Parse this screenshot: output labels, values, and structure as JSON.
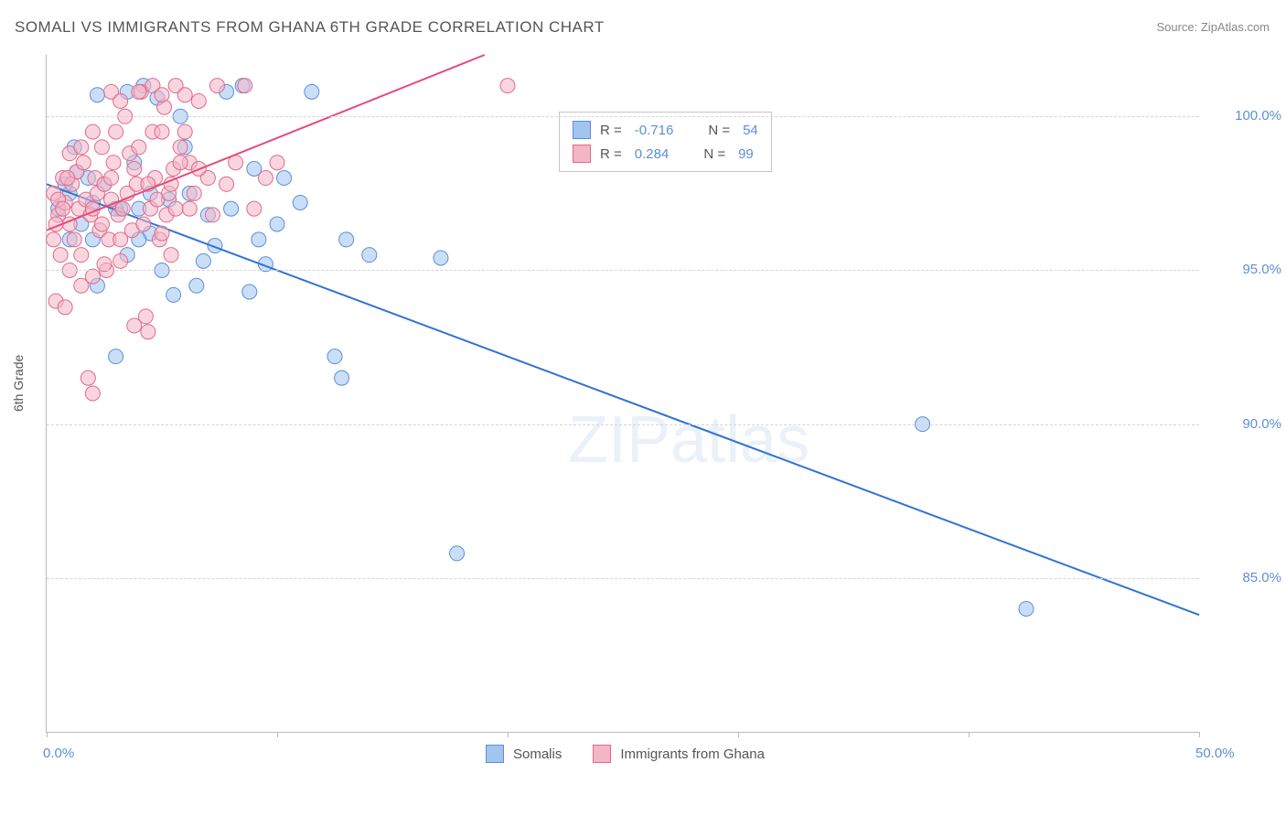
{
  "title": "SOMALI VS IMMIGRANTS FROM GHANA 6TH GRADE CORRELATION CHART",
  "source": "Source: ZipAtlas.com",
  "y_axis_label": "6th Grade",
  "watermark": "ZIPatlas",
  "chart": {
    "type": "scatter",
    "xlim": [
      0,
      50
    ],
    "ylim": [
      80,
      102
    ],
    "x_ticks": [
      0,
      10,
      20,
      30,
      40,
      50
    ],
    "x_tick_labels": {
      "0": "0.0%",
      "50": "50.0%"
    },
    "y_ticks": [
      85,
      90,
      95,
      100
    ],
    "y_tick_labels": [
      "85.0%",
      "90.0%",
      "95.0%",
      "100.0%"
    ],
    "background_color": "#ffffff",
    "grid_color": "#d5d5d5",
    "marker_radius": 8,
    "marker_opacity": 0.55,
    "series": [
      {
        "name": "Somalis",
        "color_fill": "#9fc5f0",
        "color_stroke": "#5b8fd6",
        "line_color": "#2f74d0",
        "line_width": 2,
        "R": "-0.716",
        "N": "54",
        "trend": {
          "x1": 0,
          "y1": 97.8,
          "x2": 50,
          "y2": 83.8
        },
        "points": [
          [
            0.5,
            97.0
          ],
          [
            1.0,
            97.5
          ],
          [
            1.2,
            99.0
          ],
          [
            1.5,
            96.5
          ],
          [
            1.8,
            98.0
          ],
          [
            2.0,
            97.2
          ],
          [
            2.2,
            94.5
          ],
          [
            2.5,
            97.8
          ],
          [
            3.0,
            92.2
          ],
          [
            3.2,
            97.0
          ],
          [
            3.5,
            95.5
          ],
          [
            3.8,
            98.5
          ],
          [
            4.0,
            97.0
          ],
          [
            4.2,
            101.0
          ],
          [
            4.5,
            96.2
          ],
          [
            5.0,
            95.0
          ],
          [
            5.3,
            97.3
          ],
          [
            5.5,
            94.2
          ],
          [
            6.0,
            99.0
          ],
          [
            6.2,
            97.5
          ],
          [
            6.5,
            94.5
          ],
          [
            7.0,
            96.8
          ],
          [
            7.3,
            95.8
          ],
          [
            8.0,
            97.0
          ],
          [
            8.5,
            101.0
          ],
          [
            9.0,
            98.3
          ],
          [
            9.5,
            95.2
          ],
          [
            10.0,
            96.5
          ],
          [
            10.3,
            98.0
          ],
          [
            11.0,
            97.2
          ],
          [
            12.5,
            92.2
          ],
          [
            12.8,
            91.5
          ],
          [
            13.0,
            96.0
          ],
          [
            14.0,
            95.5
          ],
          [
            17.1,
            95.4
          ],
          [
            38.0,
            90.0
          ],
          [
            42.5,
            84.0
          ],
          [
            17.8,
            85.8
          ],
          [
            3.0,
            97.0
          ],
          [
            4.8,
            100.6
          ],
          [
            2.0,
            96.0
          ],
          [
            1.0,
            96.0
          ],
          [
            0.8,
            97.8
          ],
          [
            1.3,
            98.2
          ],
          [
            5.8,
            100.0
          ],
          [
            6.8,
            95.3
          ],
          [
            4.0,
            96.0
          ],
          [
            4.5,
            97.5
          ],
          [
            7.8,
            100.8
          ],
          [
            3.5,
            100.8
          ],
          [
            11.5,
            100.8
          ],
          [
            2.2,
            100.7
          ],
          [
            9.2,
            96.0
          ],
          [
            8.8,
            94.3
          ]
        ]
      },
      {
        "name": "Immigrants from Ghana",
        "color_fill": "#f4b5c5",
        "color_stroke": "#e06a8c",
        "line_color": "#e54a7a",
        "line_width": 2,
        "R": "0.284",
        "N": "99",
        "trend": {
          "x1": 0,
          "y1": 96.3,
          "x2": 19,
          "y2": 102
        },
        "points": [
          [
            0.3,
            97.5
          ],
          [
            0.5,
            96.8
          ],
          [
            0.7,
            98.0
          ],
          [
            0.8,
            97.2
          ],
          [
            1.0,
            96.5
          ],
          [
            1.1,
            97.8
          ],
          [
            1.2,
            96.0
          ],
          [
            1.3,
            98.2
          ],
          [
            1.4,
            97.0
          ],
          [
            1.5,
            95.5
          ],
          [
            1.6,
            98.5
          ],
          [
            1.7,
            97.3
          ],
          [
            1.8,
            91.5
          ],
          [
            1.9,
            96.8
          ],
          [
            2.0,
            91.0
          ],
          [
            2.1,
            98.0
          ],
          [
            2.2,
            97.5
          ],
          [
            2.3,
            96.3
          ],
          [
            2.4,
            99.0
          ],
          [
            2.5,
            97.8
          ],
          [
            2.6,
            95.0
          ],
          [
            2.7,
            96.0
          ],
          [
            2.8,
            97.3
          ],
          [
            2.9,
            98.5
          ],
          [
            3.0,
            99.5
          ],
          [
            3.1,
            96.8
          ],
          [
            3.2,
            95.3
          ],
          [
            3.3,
            97.0
          ],
          [
            3.4,
            100.0
          ],
          [
            3.5,
            97.5
          ],
          [
            3.6,
            98.8
          ],
          [
            3.7,
            96.3
          ],
          [
            3.8,
            93.2
          ],
          [
            3.9,
            97.8
          ],
          [
            4.0,
            99.0
          ],
          [
            4.1,
            100.8
          ],
          [
            4.2,
            96.5
          ],
          [
            4.3,
            93.5
          ],
          [
            4.4,
            93.0
          ],
          [
            4.5,
            97.0
          ],
          [
            4.6,
            99.5
          ],
          [
            4.7,
            98.0
          ],
          [
            4.8,
            97.3
          ],
          [
            4.9,
            96.0
          ],
          [
            5.0,
            99.5
          ],
          [
            5.1,
            100.3
          ],
          [
            5.2,
            96.8
          ],
          [
            5.3,
            97.5
          ],
          [
            5.4,
            95.5
          ],
          [
            5.5,
            98.3
          ],
          [
            5.6,
            97.0
          ],
          [
            5.8,
            99.0
          ],
          [
            6.0,
            99.5
          ],
          [
            6.2,
            98.5
          ],
          [
            6.4,
            97.5
          ],
          [
            6.6,
            100.5
          ],
          [
            7.0,
            98.0
          ],
          [
            7.4,
            101.0
          ],
          [
            7.8,
            97.8
          ],
          [
            8.2,
            98.5
          ],
          [
            8.6,
            101.0
          ],
          [
            9.0,
            97.0
          ],
          [
            9.5,
            98.0
          ],
          [
            0.6,
            95.5
          ],
          [
            1.0,
            95.0
          ],
          [
            1.5,
            94.5
          ],
          [
            2.0,
            94.8
          ],
          [
            2.5,
            95.2
          ],
          [
            0.4,
            94.0
          ],
          [
            0.8,
            93.8
          ],
          [
            0.3,
            96.0
          ],
          [
            0.4,
            96.5
          ],
          [
            0.5,
            97.3
          ],
          [
            0.7,
            97.0
          ],
          [
            0.9,
            98.0
          ],
          [
            1.0,
            98.8
          ],
          [
            2.8,
            100.8
          ],
          [
            3.2,
            100.5
          ],
          [
            4.0,
            100.8
          ],
          [
            4.6,
            101.0
          ],
          [
            5.0,
            100.7
          ],
          [
            5.6,
            101.0
          ],
          [
            6.0,
            100.7
          ],
          [
            6.6,
            98.3
          ],
          [
            7.2,
            96.8
          ],
          [
            2.0,
            97.0
          ],
          [
            2.4,
            96.5
          ],
          [
            2.8,
            98.0
          ],
          [
            3.2,
            96.0
          ],
          [
            3.8,
            98.3
          ],
          [
            4.4,
            97.8
          ],
          [
            5.0,
            96.2
          ],
          [
            5.4,
            97.8
          ],
          [
            5.8,
            98.5
          ],
          [
            6.2,
            97.0
          ],
          [
            10.0,
            98.5
          ],
          [
            20.0,
            101.0
          ],
          [
            2.0,
            99.5
          ],
          [
            1.5,
            99.0
          ]
        ]
      }
    ]
  },
  "legend_top": {
    "rows": [
      {
        "swatch_fill": "#9fc5f0",
        "swatch_stroke": "#5b8fd6",
        "r_label": "R =",
        "r_val": "-0.716",
        "n_label": "N =",
        "n_val": "54"
      },
      {
        "swatch_fill": "#f4b5c5",
        "swatch_stroke": "#e06a8c",
        "r_label": "R =",
        "r_val": "0.284",
        "n_label": "N =",
        "n_val": "99"
      }
    ]
  },
  "legend_bottom": [
    {
      "swatch_fill": "#9fc5f0",
      "swatch_stroke": "#5b8fd6",
      "label": "Somalis"
    },
    {
      "swatch_fill": "#f4b5c5",
      "swatch_stroke": "#e06a8c",
      "label": "Immigrants from Ghana"
    }
  ]
}
